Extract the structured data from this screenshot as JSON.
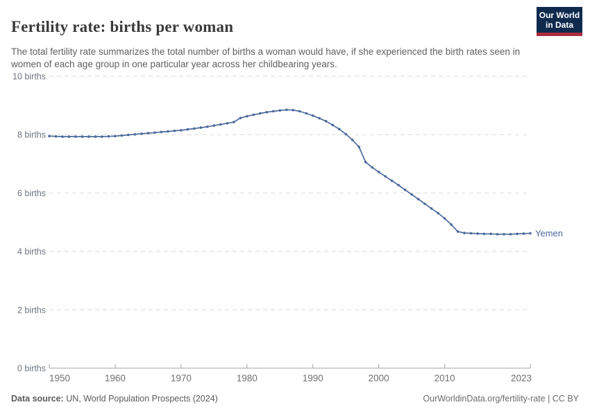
{
  "header": {
    "title": "Fertility rate: births per woman",
    "subtitle": "The total fertility rate summarizes the total number of births a woman would have, if she experienced the birth rates seen in women of each age group in one particular year across her childbearing years.",
    "logo": {
      "line1": "Our World",
      "line2": "in Data"
    }
  },
  "chart_data": {
    "type": "line",
    "title": "Fertility rate: births per woman",
    "xlabel": "",
    "ylabel": "",
    "xlim": [
      1950,
      2023
    ],
    "ylim": [
      0,
      10
    ],
    "grid": "horizontal-dashed",
    "legend_position": "end-of-line",
    "x_ticks": [
      1950,
      1960,
      1970,
      1980,
      1990,
      2000,
      2010,
      2023
    ],
    "y_ticks": [
      0,
      2,
      4,
      6,
      8,
      10
    ],
    "y_tick_suffix": " births",
    "x": [
      1950,
      1951,
      1952,
      1953,
      1954,
      1955,
      1956,
      1957,
      1958,
      1959,
      1960,
      1961,
      1962,
      1963,
      1964,
      1965,
      1966,
      1967,
      1968,
      1969,
      1970,
      1971,
      1972,
      1973,
      1974,
      1975,
      1976,
      1977,
      1978,
      1979,
      1980,
      1981,
      1982,
      1983,
      1984,
      1985,
      1986,
      1987,
      1988,
      1989,
      1990,
      1991,
      1992,
      1993,
      1994,
      1995,
      1996,
      1997,
      1998,
      1999,
      2000,
      2001,
      2002,
      2003,
      2004,
      2005,
      2006,
      2007,
      2008,
      2009,
      2010,
      2011,
      2012,
      2013,
      2014,
      2015,
      2016,
      2017,
      2018,
      2019,
      2020,
      2021,
      2022,
      2023
    ],
    "series": [
      {
        "name": "Yemen",
        "end_label": "Yemen",
        "values": [
          7.95,
          7.94,
          7.93,
          7.93,
          7.93,
          7.93,
          7.93,
          7.93,
          7.93,
          7.94,
          7.95,
          7.97,
          7.99,
          8.01,
          8.03,
          8.05,
          8.07,
          8.09,
          8.11,
          8.13,
          8.15,
          8.18,
          8.21,
          8.24,
          8.27,
          8.31,
          8.35,
          8.39,
          8.43,
          8.57,
          8.63,
          8.68,
          8.73,
          8.77,
          8.8,
          8.83,
          8.85,
          8.84,
          8.8,
          8.73,
          8.65,
          8.56,
          8.46,
          8.33,
          8.19,
          8.02,
          7.82,
          7.58,
          7.06,
          6.88,
          6.72,
          6.57,
          6.42,
          6.27,
          6.11,
          5.95,
          5.79,
          5.63,
          5.47,
          5.31,
          5.13,
          4.92,
          4.68,
          4.63,
          4.62,
          4.61,
          4.6,
          4.6,
          4.59,
          4.59,
          4.59,
          4.6,
          4.61,
          4.62
        ]
      }
    ]
  },
  "footer": {
    "datasource_label": "Data source:",
    "datasource_value": " UN, World Population Prospects (2024)",
    "credit": "OurWorldinData.org/fertility-rate | CC BY"
  },
  "colors": {
    "line": "#4c6a9c",
    "grid": "#dcdcdc",
    "axis": "#a3a3a3",
    "x_tick_text": "#707070",
    "y_tick_text": "#6e7480",
    "end_label_text": "#4c6a9c",
    "logo_bg": "#102a4e",
    "logo_stripe": "#a92e3c"
  }
}
